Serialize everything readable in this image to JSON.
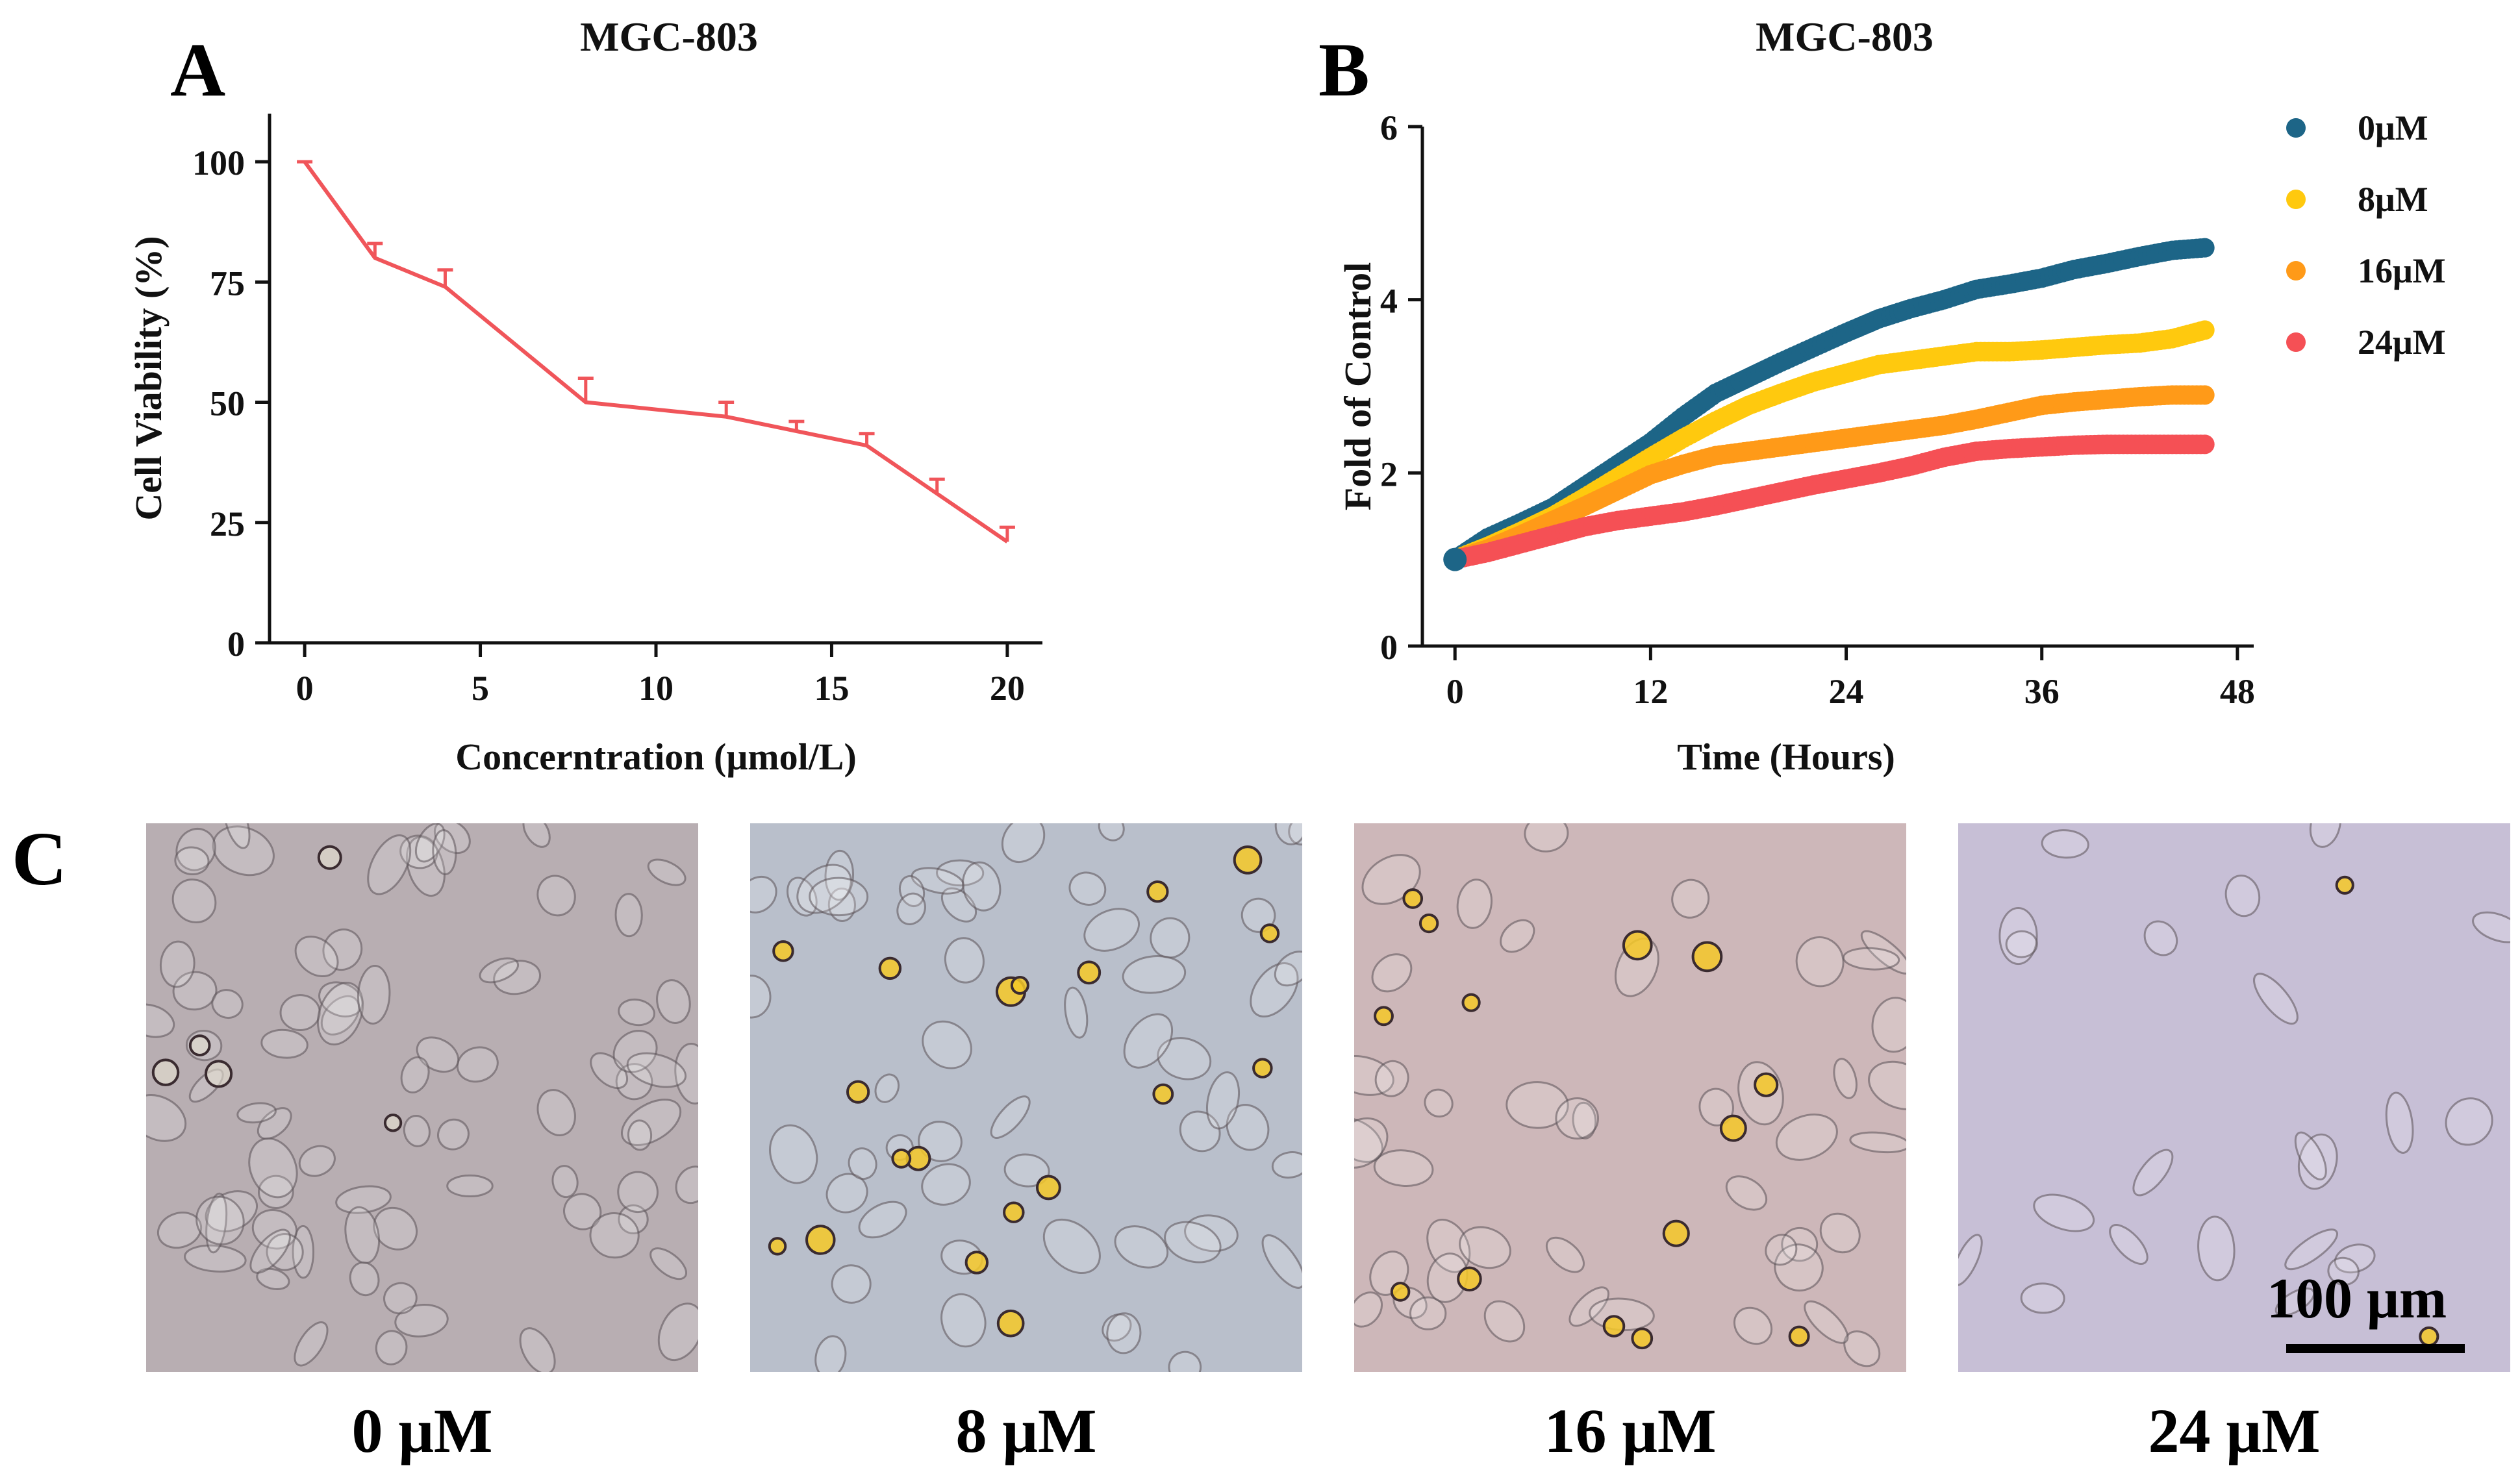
{
  "panel_letters": {
    "a": "A",
    "b": "B",
    "c": "C"
  },
  "chart_data": [
    {
      "type": "line",
      "title": "MGC-803",
      "xlabel": "Concerntration (μmol/L)",
      "ylabel": "Cell Viability (%)",
      "xlim": [
        -1,
        21
      ],
      "ylim": [
        0,
        110
      ],
      "xticks": [
        0,
        5,
        10,
        15,
        20
      ],
      "yticks": [
        0,
        25,
        50,
        75,
        100
      ],
      "grid": false,
      "color": "#f0555a",
      "x": [
        0,
        2,
        4,
        8,
        12,
        14,
        16,
        18,
        20
      ],
      "values": [
        100,
        80,
        74,
        50,
        47,
        44,
        41,
        31,
        21
      ],
      "error_upper": [
        0,
        3,
        3.5,
        5,
        3,
        2,
        2.5,
        3,
        3
      ]
    },
    {
      "type": "scatter",
      "title": "MGC-803",
      "xlabel": "Time (Hours)",
      "ylabel": "Fold of Control",
      "xlim": [
        -2,
        49
      ],
      "ylim": [
        0,
        6
      ],
      "xticks": [
        0,
        12,
        24,
        36,
        48
      ],
      "yticks": [
        0,
        2,
        4,
        6
      ],
      "grid": false,
      "legend": "top-right",
      "series": [
        {
          "name": "0μM",
          "color": "#1d6587",
          "x": [
            0,
            2,
            4,
            6,
            8,
            10,
            12,
            14,
            16,
            18,
            20,
            22,
            24,
            26,
            28,
            30,
            32,
            34,
            36,
            38,
            40,
            42,
            44,
            46
          ],
          "values": [
            1.0,
            1.25,
            1.42,
            1.6,
            1.85,
            2.1,
            2.35,
            2.65,
            2.92,
            3.1,
            3.28,
            3.45,
            3.62,
            3.78,
            3.9,
            4.0,
            4.12,
            4.18,
            4.25,
            4.35,
            4.42,
            4.5,
            4.57,
            4.6
          ]
        },
        {
          "name": "8μM",
          "color": "#ffc90e",
          "x": [
            0,
            2,
            4,
            6,
            8,
            10,
            12,
            14,
            16,
            18,
            20,
            22,
            24,
            26,
            28,
            30,
            32,
            34,
            36,
            38,
            40,
            42,
            44,
            46
          ],
          "values": [
            1.0,
            1.15,
            1.32,
            1.5,
            1.72,
            1.95,
            2.18,
            2.4,
            2.6,
            2.78,
            2.92,
            3.05,
            3.15,
            3.25,
            3.3,
            3.35,
            3.4,
            3.4,
            3.42,
            3.45,
            3.48,
            3.5,
            3.55,
            3.65
          ]
        },
        {
          "name": "16μM",
          "color": "#ff9a18",
          "x": [
            0,
            2,
            4,
            6,
            8,
            10,
            12,
            14,
            16,
            18,
            20,
            22,
            24,
            26,
            28,
            30,
            32,
            34,
            36,
            38,
            40,
            42,
            44,
            46
          ],
          "values": [
            1.0,
            1.12,
            1.28,
            1.45,
            1.62,
            1.8,
            1.98,
            2.1,
            2.2,
            2.25,
            2.3,
            2.35,
            2.4,
            2.45,
            2.5,
            2.55,
            2.62,
            2.7,
            2.78,
            2.82,
            2.85,
            2.88,
            2.9,
            2.9
          ]
        },
        {
          "name": "24μM",
          "color": "#f55055",
          "x": [
            0,
            2,
            4,
            6,
            8,
            10,
            12,
            14,
            16,
            18,
            20,
            22,
            24,
            26,
            28,
            30,
            32,
            34,
            36,
            38,
            40,
            42,
            44,
            46
          ],
          "values": [
            1.0,
            1.08,
            1.18,
            1.28,
            1.38,
            1.45,
            1.5,
            1.55,
            1.62,
            1.7,
            1.78,
            1.86,
            1.93,
            2.0,
            2.08,
            2.18,
            2.25,
            2.28,
            2.3,
            2.32,
            2.33,
            2.33,
            2.33,
            2.33
          ]
        }
      ]
    }
  ],
  "micrographs": [
    {
      "label": "0 μM",
      "tint": "#b8aeb2"
    },
    {
      "label": "8 μM",
      "tint": "#b9bfcb"
    },
    {
      "label": "16 μM",
      "tint": "#cdb7b9"
    },
    {
      "label": "24 μM",
      "tint": "#c7bfd6"
    }
  ],
  "scale_bar_label": "100 μm"
}
